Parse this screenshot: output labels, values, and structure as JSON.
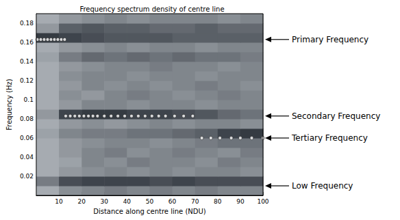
{
  "chart_data": {
    "type": "heatmap",
    "title": "Frequency spectrum density of centre line",
    "xlabel": "Distance along centre line (NDU)",
    "ylabel": "Frequency (Hz)",
    "xlim": [
      0,
      100
    ],
    "xticks": [
      10,
      20,
      30,
      40,
      50,
      60,
      70,
      80,
      90,
      100
    ],
    "ylim": [
      0,
      0.19
    ],
    "yticks": [
      0.02,
      0.04,
      0.06,
      0.08,
      0.1,
      0.12,
      0.14,
      0.16,
      0.18
    ],
    "grid": false,
    "x_bins": [
      0,
      10,
      20,
      30,
      40,
      50,
      60,
      70,
      80,
      90,
      100
    ],
    "y_bins": [
      0,
      0.01,
      0.02,
      0.03,
      0.04,
      0.05,
      0.06,
      0.07,
      0.08,
      0.09,
      0.1,
      0.11,
      0.12,
      0.13,
      0.14,
      0.15,
      0.16,
      0.17,
      0.18,
      0.19
    ],
    "zlim": [
      0,
      1
    ],
    "density": [
      [
        0.3,
        0.45,
        0.5,
        0.55,
        0.5,
        0.55,
        0.5,
        0.55,
        0.5,
        0.5
      ],
      [
        0.55,
        0.8,
        0.85,
        0.85,
        0.85,
        0.8,
        0.85,
        0.8,
        0.8,
        0.8
      ],
      [
        0.3,
        0.4,
        0.45,
        0.5,
        0.45,
        0.5,
        0.45,
        0.5,
        0.5,
        0.45
      ],
      [
        0.3,
        0.35,
        0.5,
        0.45,
        0.55,
        0.5,
        0.5,
        0.45,
        0.55,
        0.5
      ],
      [
        0.3,
        0.4,
        0.5,
        0.55,
        0.45,
        0.5,
        0.55,
        0.5,
        0.45,
        0.55
      ],
      [
        0.3,
        0.4,
        0.45,
        0.5,
        0.5,
        0.45,
        0.5,
        0.55,
        0.6,
        0.6
      ],
      [
        0.35,
        0.5,
        0.55,
        0.55,
        0.6,
        0.6,
        0.65,
        0.7,
        0.85,
        0.9
      ],
      [
        0.3,
        0.4,
        0.45,
        0.4,
        0.45,
        0.5,
        0.45,
        0.5,
        0.5,
        0.45
      ],
      [
        0.4,
        0.85,
        0.9,
        0.9,
        0.85,
        0.85,
        0.8,
        0.75,
        0.65,
        0.6
      ],
      [
        0.3,
        0.4,
        0.5,
        0.5,
        0.45,
        0.5,
        0.5,
        0.45,
        0.5,
        0.5
      ],
      [
        0.3,
        0.45,
        0.4,
        0.5,
        0.55,
        0.5,
        0.45,
        0.5,
        0.55,
        0.5
      ],
      [
        0.3,
        0.4,
        0.5,
        0.45,
        0.5,
        0.45,
        0.5,
        0.55,
        0.5,
        0.45
      ],
      [
        0.3,
        0.45,
        0.5,
        0.5,
        0.45,
        0.5,
        0.5,
        0.45,
        0.5,
        0.5
      ],
      [
        0.3,
        0.4,
        0.45,
        0.5,
        0.5,
        0.55,
        0.5,
        0.5,
        0.45,
        0.5
      ],
      [
        0.35,
        0.55,
        0.65,
        0.6,
        0.65,
        0.6,
        0.65,
        0.6,
        0.6,
        0.55
      ],
      [
        0.3,
        0.4,
        0.45,
        0.5,
        0.45,
        0.5,
        0.5,
        0.45,
        0.5,
        0.5
      ],
      [
        0.9,
        0.85,
        0.8,
        0.75,
        0.75,
        0.75,
        0.7,
        0.7,
        0.7,
        0.7
      ],
      [
        0.4,
        0.7,
        0.75,
        0.7,
        0.7,
        0.65,
        0.65,
        0.7,
        0.65,
        0.65
      ],
      [
        0.3,
        0.4,
        0.45,
        0.5,
        0.45,
        0.5,
        0.5,
        0.5,
        0.45,
        0.5
      ]
    ],
    "series": [
      {
        "type": "scatter",
        "marker": "circle",
        "color": "#ffffff",
        "x": [
          0.5,
          2,
          3.5,
          5,
          6.5,
          8,
          9.5,
          11,
          12.5
        ],
        "values": [
          0.163,
          0.163,
          0.163,
          0.163,
          0.163,
          0.163,
          0.163,
          0.163,
          0.163
        ]
      },
      {
        "type": "scatter",
        "marker": "circle",
        "color": "#ffffff",
        "x": [
          13,
          15,
          17,
          19,
          21,
          23,
          25,
          27,
          30,
          33,
          36,
          39,
          42,
          45,
          48,
          51,
          54,
          57,
          61,
          65,
          69
        ],
        "values": [
          0.083,
          0.083,
          0.083,
          0.083,
          0.083,
          0.083,
          0.083,
          0.083,
          0.083,
          0.083,
          0.083,
          0.083,
          0.083,
          0.083,
          0.083,
          0.083,
          0.083,
          0.083,
          0.083,
          0.083,
          0.083
        ]
      },
      {
        "type": "scatter",
        "marker": "circle",
        "color": "#ffffff",
        "x": [
          73,
          77,
          81,
          86,
          90,
          95,
          100
        ],
        "values": [
          0.06,
          0.06,
          0.06,
          0.06,
          0.06,
          0.06,
          0.06
        ]
      }
    ],
    "annotations": [
      {
        "text": "Primary Frequency",
        "y": 0.163
      },
      {
        "text": "Secondary Frequency",
        "y": 0.083
      },
      {
        "text": "Tertiary Frequency",
        "y": 0.06
      },
      {
        "text": "Low Frequency",
        "y": 0.01
      }
    ]
  }
}
